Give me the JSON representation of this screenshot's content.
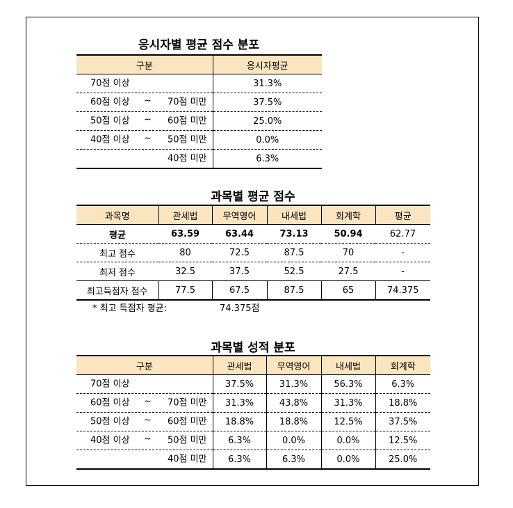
{
  "t1": {
    "title": "응시자별 평균 점수 분포",
    "headers": [
      "구분",
      "응시자평균"
    ],
    "rows": [
      {
        "from": "70점 이상",
        "tilde": "",
        "to": "",
        "value": "31.3%"
      },
      {
        "from": "60점 이상",
        "tilde": "~",
        "to": "70점 미만",
        "value": "37.5%"
      },
      {
        "from": "50점 이상",
        "tilde": "~",
        "to": "60점 미만",
        "value": "25.0%"
      },
      {
        "from": "40점 이상",
        "tilde": "~",
        "to": "50점 미만",
        "value": "0.0%"
      },
      {
        "from": "",
        "tilde": "",
        "to": "40점 미만",
        "value": "6.3%"
      }
    ]
  },
  "t2": {
    "title": "과목별 평균 점수",
    "headers": [
      "과목명",
      "관세법",
      "무역영어",
      "내세법",
      "회계학",
      "평균"
    ],
    "rows": [
      [
        "평균",
        "63.59",
        "63.44",
        "73.13",
        "50.94",
        "62.77"
      ],
      [
        "최고 점수",
        "80",
        "72.5",
        "87.5",
        "70",
        "-"
      ],
      [
        "최저 점수",
        "32.5",
        "37.5",
        "52.5",
        "27.5",
        "-"
      ],
      [
        "최고득점자 점수",
        "77.5",
        "67.5",
        "87.5",
        "65",
        "74.375"
      ]
    ],
    "note_label": "* 최고 득점자 평균:",
    "note_value": "74.375점"
  },
  "t3": {
    "title": "과목별 성적 분포",
    "headers": [
      "구분",
      "관세법",
      "무역영어",
      "내세법",
      "회계학"
    ],
    "rows": [
      {
        "from": "70점 이상",
        "tilde": "",
        "to": "",
        "values": [
          "37.5%",
          "31.3%",
          "56.3%",
          "6.3%"
        ]
      },
      {
        "from": "60점 이상",
        "tilde": "~",
        "to": "70점 미만",
        "values": [
          "31.3%",
          "43.8%",
          "31.3%",
          "18.8%"
        ]
      },
      {
        "from": "50점 이상",
        "tilde": "~",
        "to": "60점 미만",
        "values": [
          "18.8%",
          "18.8%",
          "12.5%",
          "37.5%"
        ]
      },
      {
        "from": "40점 이상",
        "tilde": "~",
        "to": "50점 미만",
        "values": [
          "6.3%",
          "0.0%",
          "0.0%",
          "12.5%"
        ]
      },
      {
        "from": "",
        "tilde": "",
        "to": "40점 미만",
        "values": [
          "6.3%",
          "6.3%",
          "0.0%",
          "25.0%"
        ]
      }
    ]
  }
}
